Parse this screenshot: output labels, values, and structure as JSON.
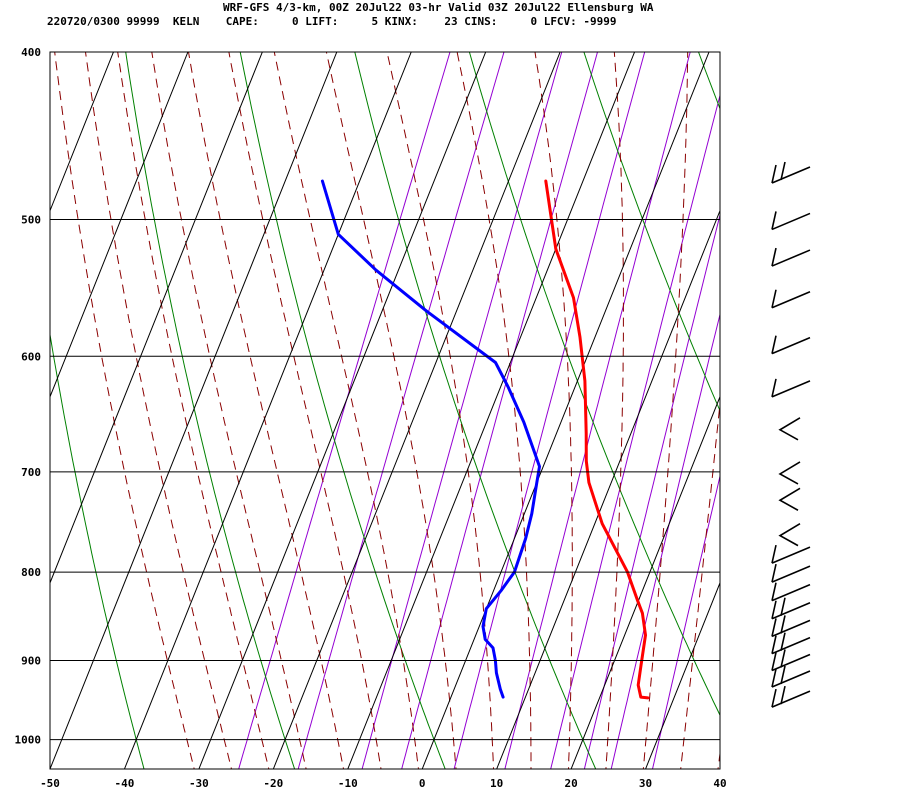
{
  "header": {
    "title": "WRF-GFS 4/3-km, 00Z 20Jul22 03-hr Valid 03Z 20Jul22 Ellensburg WA",
    "stats": "220720/0300 99999  KELN    CAPE:     0 LIFT:     5 KINX:    23 CINS:     0 LFCV: -9999"
  },
  "chart_data": {
    "type": "line",
    "subtype": "skew-T log-P sounding",
    "title": "WRF-GFS 4/3-km, 00Z 20Jul22 03-hr Valid 03Z 20Jul22 Ellensburg WA",
    "xlabel": "",
    "ylabel": "",
    "x_ticks": [
      -50,
      -40,
      -30,
      -20,
      -10,
      0,
      10,
      20,
      30,
      40
    ],
    "y_ticks": [
      400,
      500,
      600,
      700,
      800,
      900,
      1000
    ],
    "xlim": [
      -50,
      40
    ],
    "ylim": [
      1040,
      400
    ],
    "y_scale": "log",
    "grid": true,
    "series": [
      {
        "color": "#ff0000",
        "points": [
          [
            26.5,
            946
          ],
          [
            25.5,
            945
          ],
          [
            24.5,
            930
          ],
          [
            23.8,
            905
          ],
          [
            22.8,
            870
          ],
          [
            21.2,
            845
          ],
          [
            19.8,
            830
          ],
          [
            17.0,
            800
          ],
          [
            11.0,
            750
          ],
          [
            7.0,
            710
          ],
          [
            5.5,
            690
          ],
          [
            4.0,
            665
          ],
          [
            1.0,
            620
          ],
          [
            -2.0,
            585
          ],
          [
            -5.0,
            555
          ],
          [
            -10.0,
            520
          ],
          [
            -15.0,
            475
          ]
        ]
      },
      {
        "color": "#0000ff",
        "points": [
          [
            7.0,
            945
          ],
          [
            6.2,
            935
          ],
          [
            4.8,
            915
          ],
          [
            4.0,
            900
          ],
          [
            3.0,
            885
          ],
          [
            1.5,
            875
          ],
          [
            0.5,
            860
          ],
          [
            0.0,
            840
          ],
          [
            1.0,
            820
          ],
          [
            1.8,
            800
          ],
          [
            1.5,
            765
          ],
          [
            1.0,
            740
          ],
          [
            0.0,
            710
          ],
          [
            -0.5,
            695
          ],
          [
            -5.0,
            655
          ],
          [
            -9.0,
            625
          ],
          [
            -12.0,
            605
          ],
          [
            -24.0,
            565
          ],
          [
            -33.0,
            535
          ],
          [
            -40.0,
            510
          ],
          [
            -45.0,
            475
          ]
        ]
      }
    ],
    "wind_barbs": [
      {
        "pressure": 945,
        "style": "double"
      },
      {
        "pressure": 920,
        "style": "double"
      },
      {
        "pressure": 900,
        "style": "double"
      },
      {
        "pressure": 880,
        "style": "double"
      },
      {
        "pressure": 860,
        "style": "double"
      },
      {
        "pressure": 840,
        "style": "double"
      },
      {
        "pressure": 820,
        "style": "single"
      },
      {
        "pressure": 800,
        "style": "single"
      },
      {
        "pressure": 780,
        "style": "single"
      },
      {
        "pressure": 760,
        "style": "vee"
      },
      {
        "pressure": 725,
        "style": "vee"
      },
      {
        "pressure": 700,
        "style": "vee"
      },
      {
        "pressure": 660,
        "style": "vee"
      },
      {
        "pressure": 625,
        "style": "single"
      },
      {
        "pressure": 590,
        "style": "single"
      },
      {
        "pressure": 555,
        "style": "single"
      },
      {
        "pressure": 525,
        "style": "single"
      },
      {
        "pressure": 500,
        "style": "single"
      },
      {
        "pressure": 470,
        "style": "double"
      }
    ],
    "colors": {
      "temperature": "#ff0000",
      "dewpoint": "#0000ff",
      "isotherm": "#000000",
      "dry_adiabat": "#008000",
      "moist_adiabat": "#8b0000",
      "mixing_ratio": "#9400d3"
    }
  }
}
